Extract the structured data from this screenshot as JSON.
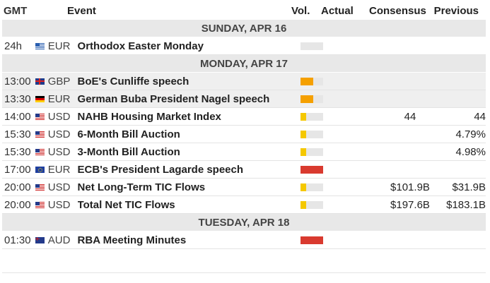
{
  "header": {
    "gmt": "GMT",
    "event": "Event",
    "vol": "Vol.",
    "actual": "Actual",
    "consensus": "Consensus",
    "previous": "Previous"
  },
  "colors": {
    "low": "#f5c800",
    "medium": "#f5a000",
    "high": "#d93a2f",
    "empty": "#e6e6e6"
  },
  "days": [
    {
      "label": "SUNDAY, APR 16",
      "events": [
        {
          "time": "24h",
          "flag": "greece-flag-icon",
          "currency": "EUR",
          "name": "Orthodox Easter Monday",
          "vol": "none",
          "actual": "",
          "consensus": "",
          "previous": "",
          "highlight": false
        }
      ]
    },
    {
      "label": "MONDAY, APR 17",
      "events": [
        {
          "time": "13:00",
          "flag": "uk-flag-icon",
          "currency": "GBP",
          "name": "BoE's Cunliffe speech",
          "vol": "medium",
          "actual": "",
          "consensus": "",
          "previous": "",
          "highlight": true
        },
        {
          "time": "13:30",
          "flag": "germany-flag-icon",
          "currency": "EUR",
          "name": "German Buba President Nagel speech",
          "vol": "medium",
          "actual": "",
          "consensus": "",
          "previous": "",
          "highlight": true
        },
        {
          "time": "14:00",
          "flag": "usa-flag-icon",
          "currency": "USD",
          "name": "NAHB Housing Market Index",
          "vol": "low",
          "actual": "",
          "consensus": "44",
          "previous": "44",
          "highlight": false
        },
        {
          "time": "15:30",
          "flag": "usa-flag-icon",
          "currency": "USD",
          "name": "6-Month Bill Auction",
          "vol": "low",
          "actual": "",
          "consensus": "",
          "previous": "4.79%",
          "highlight": false
        },
        {
          "time": "15:30",
          "flag": "usa-flag-icon",
          "currency": "USD",
          "name": "3-Month Bill Auction",
          "vol": "low",
          "actual": "",
          "consensus": "",
          "previous": "4.98%",
          "highlight": false
        },
        {
          "time": "17:00",
          "flag": "eu-flag-icon",
          "currency": "EUR",
          "name": "ECB's President Lagarde speech",
          "vol": "high",
          "actual": "",
          "consensus": "",
          "previous": "",
          "highlight": false
        },
        {
          "time": "20:00",
          "flag": "usa-flag-icon",
          "currency": "USD",
          "name": "Net Long-Term TIC Flows",
          "vol": "low",
          "actual": "",
          "consensus": "$101.9B",
          "previous": "$31.9B",
          "highlight": false
        },
        {
          "time": "20:00",
          "flag": "usa-flag-icon",
          "currency": "USD",
          "name": "Total Net TIC Flows",
          "vol": "low",
          "actual": "",
          "consensus": "$197.6B",
          "previous": "$183.1B",
          "highlight": false
        }
      ]
    },
    {
      "label": "TUESDAY, APR 18",
      "events": [
        {
          "time": "01:30",
          "flag": "australia-flag-icon",
          "currency": "AUD",
          "name": "RBA Meeting Minutes",
          "vol": "high",
          "actual": "",
          "consensus": "",
          "previous": "",
          "highlight": false
        }
      ]
    }
  ]
}
